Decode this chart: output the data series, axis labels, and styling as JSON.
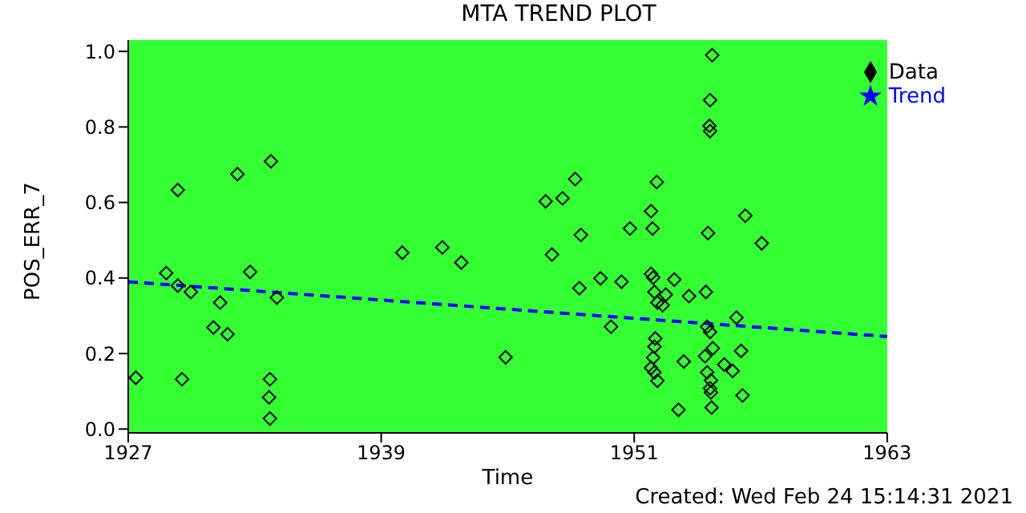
{
  "chart_data": {
    "type": "scatter",
    "title": "MTA TREND PLOT",
    "xlabel": "Time",
    "ylabel": "POS_ERR_7",
    "annotations": [
      "Created: Wed Feb 24 15:14:31 2021"
    ],
    "xlim": [
      1927,
      1963
    ],
    "xticks": [
      1927,
      1939,
      1951,
      1963
    ],
    "ylim": [
      -0.01,
      1.03
    ],
    "yticks": [
      {
        "value": 0,
        "label": "0.0"
      },
      {
        "value": 0.2,
        "label": "0.2"
      },
      {
        "value": 0.4,
        "label": "0.4"
      },
      {
        "value": 0.6,
        "label": "0.6"
      },
      {
        "value": 0.8,
        "label": "0.8"
      },
      {
        "value": 1,
        "label": "1.0"
      }
    ],
    "grid": false,
    "legend": "top right",
    "series": [
      {
        "name": "Data",
        "marker": "diamond",
        "color": "#000000",
        "x": [
          1927.36,
          1929.35,
          1928.8,
          1929.35,
          1929.97,
          1929.55,
          1932.18,
          1933.77,
          1932.78,
          1931.36,
          1931.04,
          1931.71,
          1934.05,
          1933.72,
          1933.68,
          1933.72,
          1940.0,
          1941.9,
          1942.8,
          1944.9,
          1946.8,
          1947.6,
          1948.2,
          1948.47,
          1947.1,
          1948.4,
          1949.4,
          1949.9,
          1950.4,
          1950.8,
          1952.07,
          1951.8,
          1951.87,
          1951.8,
          1951.9,
          1951.96,
          1952.1,
          1952.35,
          1952.5,
          1952.9,
          1952.0,
          1951.96,
          1951.9,
          1951.8,
          1951.96,
          1952.1,
          1953.35,
          1953.1,
          1953.6,
          1954.7,
          1954.6,
          1954.57,
          1954.6,
          1954.5,
          1954.4,
          1954.46,
          1954.6,
          1954.73,
          1954.36,
          1954.46,
          1954.64,
          1954.6,
          1954.64,
          1954.67,
          1955.27,
          1955.67,
          1955.85,
          1956.07,
          1956.14,
          1956.27,
          1957.05
        ],
        "values": [
          0.136,
          0.633,
          0.413,
          0.38,
          0.363,
          0.132,
          0.675,
          0.709,
          0.416,
          0.335,
          0.269,
          0.251,
          0.348,
          0.132,
          0.084,
          0.028,
          0.467,
          0.481,
          0.441,
          0.19,
          0.603,
          0.611,
          0.662,
          0.514,
          0.462,
          0.373,
          0.399,
          0.271,
          0.39,
          0.531,
          0.654,
          0.577,
          0.531,
          0.411,
          0.401,
          0.363,
          0.335,
          0.328,
          0.356,
          0.396,
          0.24,
          0.218,
          0.189,
          0.162,
          0.15,
          0.128,
          0.179,
          0.051,
          0.352,
          0.99,
          0.871,
          0.803,
          0.789,
          0.519,
          0.363,
          0.271,
          0.257,
          0.214,
          0.193,
          0.15,
          0.129,
          0.108,
          0.097,
          0.057,
          0.171,
          0.154,
          0.295,
          0.207,
          0.089,
          0.565,
          0.492
        ]
      },
      {
        "name": "Trend",
        "type": "line",
        "marker": "none",
        "color": "#0000ff",
        "line_style": "dashed",
        "x": [
          1927,
          1963
        ],
        "values": [
          0.39,
          0.245
        ]
      }
    ]
  }
}
